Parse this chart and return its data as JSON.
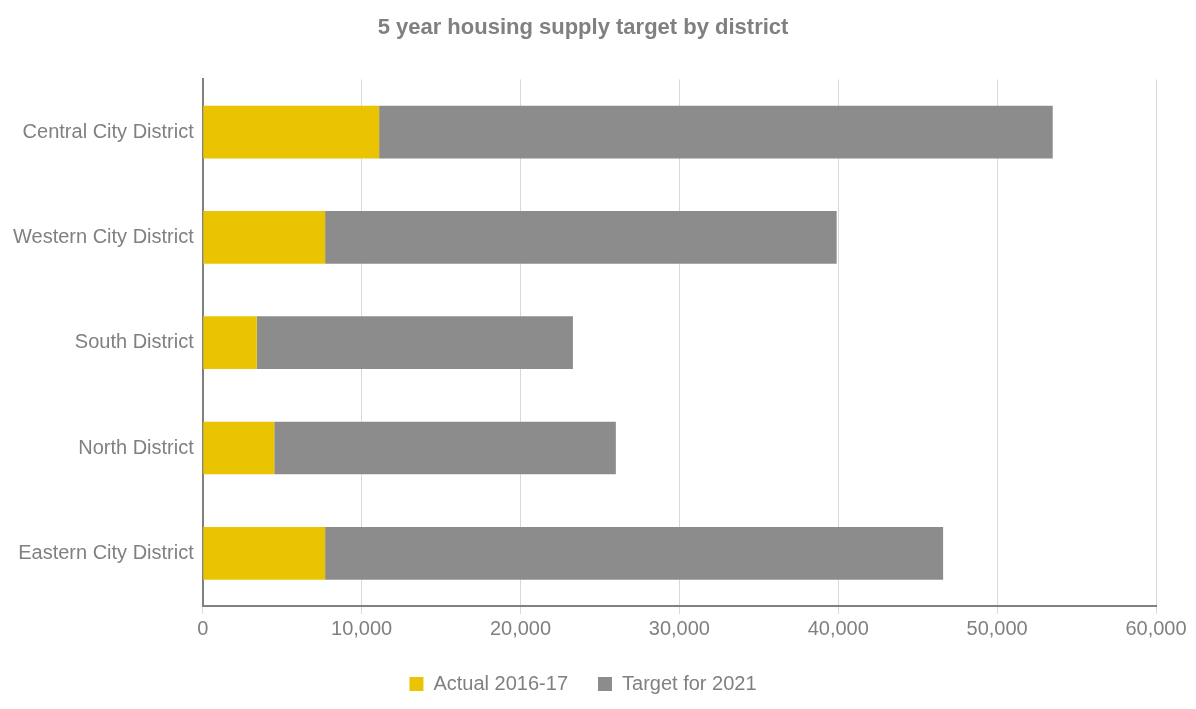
{
  "chart_data": {
    "type": "bar",
    "orientation": "horizontal",
    "stacked": true,
    "title": "5 year housing supply target by district",
    "categories": [
      "Central City District",
      "Western City District",
      "South District",
      "North District",
      "Eastern City District"
    ],
    "series": [
      {
        "name": "Actual 2016-17",
        "color": "#eac400",
        "values": [
          11100,
          7700,
          3400,
          4500,
          7700
        ]
      },
      {
        "name": "Target for 2021",
        "color": "#8c8c8c",
        "values": [
          42400,
          32200,
          19900,
          21500,
          38900
        ]
      }
    ],
    "xlim": [
      0,
      60000
    ],
    "xticks": [
      0,
      {
        "value": 10000,
        "label": "10,000"
      },
      {
        "value": 20000,
        "label": "20,000"
      },
      {
        "value": 30000,
        "label": "30,000"
      },
      {
        "value": 40000,
        "label": "40,000"
      },
      {
        "value": 50000,
        "label": "50,000"
      },
      {
        "value": 60000,
        "label": "60,000"
      }
    ],
    "grid": "x",
    "legend": "bottom"
  }
}
